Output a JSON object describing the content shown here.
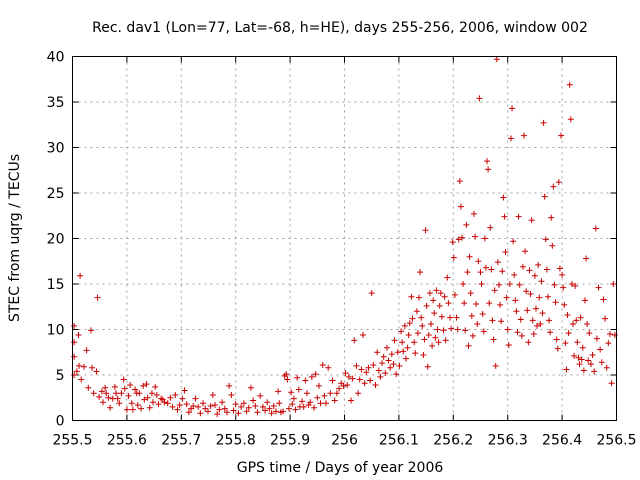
{
  "chart_data": {
    "type": "scatter",
    "title": "Rec. dav1 (Lon=77, Lat=-68, h=HE), days 255-256, 2006, window 002",
    "xlabel": "GPS time / Days of year 2006",
    "ylabel": "STEC from uqrg / TECUs",
    "xlim": [
      255.5,
      256.5
    ],
    "ylim": [
      0,
      40
    ],
    "xticks": [
      255.5,
      255.6,
      255.7,
      255.8,
      255.9,
      256.0,
      256.1,
      256.2,
      256.3,
      256.4,
      256.5
    ],
    "xtick_labels": [
      "255.5",
      "255.6",
      "255.7",
      "255.8",
      "255.9",
      "256",
      "256.1",
      "256.2",
      "256.3",
      "256.4",
      "256.5"
    ],
    "yticks": [
      0,
      5,
      10,
      15,
      20,
      25,
      30,
      35,
      40
    ],
    "ytick_labels": [
      "0",
      "5",
      "10",
      "15",
      "20",
      "25",
      "30",
      "35",
      "40"
    ],
    "grid": true,
    "marker": "+",
    "color": "#c80000",
    "points": [
      [
        255.503,
        10.4
      ],
      [
        255.503,
        8.6
      ],
      [
        255.503,
        7.0
      ],
      [
        255.503,
        5.0
      ],
      [
        255.508,
        5.4
      ],
      [
        255.511,
        9.4
      ],
      [
        255.512,
        6.0
      ],
      [
        255.514,
        15.9
      ],
      [
        255.516,
        4.5
      ],
      [
        255.521,
        5.9
      ],
      [
        255.526,
        7.7
      ],
      [
        255.529,
        3.6
      ],
      [
        255.534,
        9.9
      ],
      [
        255.536,
        5.8
      ],
      [
        255.539,
        3.0
      ],
      [
        255.544,
        5.4
      ],
      [
        255.546,
        13.5
      ],
      [
        255.549,
        2.6
      ],
      [
        255.554,
        3.2
      ],
      [
        255.556,
        2.0
      ],
      [
        255.56,
        3.6
      ],
      [
        255.562,
        3.0
      ],
      [
        255.566,
        2.5
      ],
      [
        255.569,
        1.4
      ],
      [
        255.574,
        2.4
      ],
      [
        255.578,
        3.7
      ],
      [
        255.58,
        3.0
      ],
      [
        255.583,
        2.4
      ],
      [
        255.586,
        1.9
      ],
      [
        255.59,
        3.0
      ],
      [
        255.594,
        4.5
      ],
      [
        255.596,
        3.5
      ],
      [
        255.6,
        1.2
      ],
      [
        255.603,
        2.7
      ],
      [
        255.606,
        3.9
      ],
      [
        255.609,
        1.9
      ],
      [
        255.611,
        1.2
      ],
      [
        255.615,
        3.4
      ],
      [
        255.618,
        3.0
      ],
      [
        255.62,
        1.7
      ],
      [
        255.623,
        3.0
      ],
      [
        255.626,
        1.3
      ],
      [
        255.63,
        3.8
      ],
      [
        255.632,
        2.3
      ],
      [
        255.636,
        4.0
      ],
      [
        255.638,
        2.5
      ],
      [
        255.642,
        1.4
      ],
      [
        255.646,
        3.0
      ],
      [
        255.648,
        2.0
      ],
      [
        255.652,
        3.7
      ],
      [
        255.655,
        2.8
      ],
      [
        255.658,
        1.8
      ],
      [
        255.663,
        2.4
      ],
      [
        255.666,
        2.3
      ],
      [
        255.669,
        2.0
      ],
      [
        255.675,
        1.9
      ],
      [
        255.68,
        2.5
      ],
      [
        255.684,
        1.5
      ],
      [
        255.689,
        2.8
      ],
      [
        255.693,
        1.2
      ],
      [
        255.697,
        1.7
      ],
      [
        255.702,
        2.4
      ],
      [
        255.706,
        3.3
      ],
      [
        255.71,
        1.8
      ],
      [
        255.714,
        0.9
      ],
      [
        255.718,
        1.3
      ],
      [
        255.722,
        1.6
      ],
      [
        255.726,
        2.4
      ],
      [
        255.731,
        1.5
      ],
      [
        255.735,
        0.8
      ],
      [
        255.74,
        1.9
      ],
      [
        255.744,
        1.3
      ],
      [
        255.749,
        1.0
      ],
      [
        255.754,
        1.6
      ],
      [
        255.758,
        2.8
      ],
      [
        255.762,
        1.7
      ],
      [
        255.766,
        0.7
      ],
      [
        255.77,
        1.2
      ],
      [
        255.775,
        2.0
      ],
      [
        255.78,
        1.3
      ],
      [
        255.784,
        0.9
      ],
      [
        255.788,
        3.8
      ],
      [
        255.792,
        2.8
      ],
      [
        255.796,
        1.1
      ],
      [
        255.8,
        1.8
      ],
      [
        255.805,
        0.8
      ],
      [
        255.81,
        1.5
      ],
      [
        255.815,
        1.9
      ],
      [
        255.82,
        1.0
      ],
      [
        255.824,
        1.4
      ],
      [
        255.828,
        3.6
      ],
      [
        255.832,
        2.2
      ],
      [
        255.836,
        1.6
      ],
      [
        255.84,
        0.9
      ],
      [
        255.845,
        2.7
      ],
      [
        255.85,
        1.5
      ],
      [
        255.854,
        1.1
      ],
      [
        255.858,
        2.0
      ],
      [
        255.862,
        1.3
      ],
      [
        255.866,
        0.8
      ],
      [
        255.87,
        1.6
      ],
      [
        255.874,
        1.0
      ],
      [
        255.878,
        3.2
      ],
      [
        255.88,
        1.9
      ],
      [
        255.883,
        0.9
      ],
      [
        255.887,
        1.0
      ],
      [
        255.89,
        4.9
      ],
      [
        255.893,
        5.1
      ],
      [
        255.895,
        4.5
      ],
      [
        255.898,
        1.3
      ],
      [
        255.902,
        3.1
      ],
      [
        255.904,
        1.8
      ],
      [
        255.907,
        2.4
      ],
      [
        255.91,
        1.2
      ],
      [
        255.913,
        4.7
      ],
      [
        255.916,
        3.4
      ],
      [
        255.918,
        1.5
      ],
      [
        255.922,
        2.1
      ],
      [
        255.925,
        1.5
      ],
      [
        255.928,
        4.4
      ],
      [
        255.931,
        3.0
      ],
      [
        255.934,
        1.7
      ],
      [
        255.937,
        2.0
      ],
      [
        255.94,
        4.8
      ],
      [
        255.944,
        1.4
      ],
      [
        255.947,
        5.1
      ],
      [
        255.95,
        2.5
      ],
      [
        255.953,
        3.8
      ],
      [
        255.956,
        1.9
      ],
      [
        255.96,
        6.1
      ],
      [
        255.963,
        2.7
      ],
      [
        255.966,
        1.9
      ],
      [
        255.97,
        5.8
      ],
      [
        255.974,
        3.0
      ],
      [
        255.978,
        4.4
      ],
      [
        255.982,
        2.2
      ],
      [
        255.986,
        3.0
      ],
      [
        255.99,
        3.5
      ],
      [
        255.994,
        4.1
      ],
      [
        255.998,
        3.8
      ],
      [
        256.002,
        5.2
      ],
      [
        256.005,
        3.9
      ],
      [
        256.008,
        4.8
      ],
      [
        256.012,
        2.2
      ],
      [
        256.015,
        4.6
      ],
      [
        256.018,
        8.8
      ],
      [
        256.022,
        6.0
      ],
      [
        256.025,
        3.0
      ],
      [
        256.028,
        4.5
      ],
      [
        256.031,
        5.6
      ],
      [
        256.034,
        9.4
      ],
      [
        256.037,
        4.1
      ],
      [
        256.04,
        5.3
      ],
      [
        256.044,
        5.8
      ],
      [
        256.047,
        4.4
      ],
      [
        256.05,
        14.0
      ],
      [
        256.053,
        6.1
      ],
      [
        256.057,
        3.9
      ],
      [
        256.06,
        7.5
      ],
      [
        256.063,
        5.5
      ],
      [
        256.066,
        4.8
      ],
      [
        256.069,
        6.3
      ],
      [
        256.072,
        7.0
      ],
      [
        256.075,
        5.2
      ],
      [
        256.078,
        8.0
      ],
      [
        256.081,
        6.6
      ],
      [
        256.084,
        5.8
      ],
      [
        256.087,
        7.3
      ],
      [
        256.09,
        6.2
      ],
      [
        256.092,
        8.8
      ],
      [
        256.095,
        5.1
      ],
      [
        256.098,
        7.5
      ],
      [
        256.101,
        6.0
      ],
      [
        256.104,
        9.8
      ],
      [
        256.106,
        8.6
      ],
      [
        256.108,
        7.6
      ],
      [
        256.111,
        10.4
      ],
      [
        256.113,
        6.8
      ],
      [
        256.116,
        8.0
      ],
      [
        256.118,
        9.4
      ],
      [
        256.12,
        10.7
      ],
      [
        256.123,
        13.6
      ],
      [
        256.125,
        11.2
      ],
      [
        256.128,
        8.6
      ],
      [
        256.13,
        7.4
      ],
      [
        256.133,
        12.0
      ],
      [
        256.135,
        9.6
      ],
      [
        256.137,
        13.5
      ],
      [
        256.139,
        16.3
      ],
      [
        256.141,
        11.3
      ],
      [
        256.143,
        10.4
      ],
      [
        256.145,
        7.2
      ],
      [
        256.147,
        8.9
      ],
      [
        256.149,
        20.9
      ],
      [
        256.151,
        12.6
      ],
      [
        256.153,
        5.9
      ],
      [
        256.155,
        9.4
      ],
      [
        256.157,
        14.0
      ],
      [
        256.159,
        10.6
      ],
      [
        256.161,
        8.2
      ],
      [
        256.163,
        13.2
      ],
      [
        256.165,
        11.8
      ],
      [
        256.167,
        9.1
      ],
      [
        256.169,
        14.3
      ],
      [
        256.171,
        10.0
      ],
      [
        256.173,
        8.6
      ],
      [
        256.175,
        12.6
      ],
      [
        256.177,
        14.0
      ],
      [
        256.179,
        11.4
      ],
      [
        256.182,
        9.9
      ],
      [
        256.184,
        13.6
      ],
      [
        256.186,
        8.8
      ],
      [
        256.189,
        15.7
      ],
      [
        256.191,
        12.9
      ],
      [
        256.194,
        11.3
      ],
      [
        256.196,
        10.1
      ],
      [
        256.199,
        19.6
      ],
      [
        256.201,
        17.9
      ],
      [
        256.203,
        13.8
      ],
      [
        256.206,
        11.3
      ],
      [
        256.208,
        10.0
      ],
      [
        256.21,
        19.9
      ],
      [
        256.212,
        26.3
      ],
      [
        256.214,
        23.5
      ],
      [
        256.216,
        20.1
      ],
      [
        256.218,
        15.0
      ],
      [
        256.22,
        12.9
      ],
      [
        256.222,
        9.9
      ],
      [
        256.224,
        21.5
      ],
      [
        256.226,
        16.3
      ],
      [
        256.228,
        8.2
      ],
      [
        256.23,
        18.0
      ],
      [
        256.232,
        14.0
      ],
      [
        256.234,
        11.5
      ],
      [
        256.236,
        9.3
      ],
      [
        256.238,
        22.7
      ],
      [
        256.24,
        20.2
      ],
      [
        256.242,
        12.8
      ],
      [
        256.244,
        10.6
      ],
      [
        256.246,
        17.5
      ],
      [
        256.248,
        35.4
      ],
      [
        256.25,
        16.3
      ],
      [
        256.252,
        15.0
      ],
      [
        256.254,
        11.7
      ],
      [
        256.256,
        9.8
      ],
      [
        256.258,
        20.0
      ],
      [
        256.26,
        16.8
      ],
      [
        256.262,
        28.5
      ],
      [
        256.264,
        27.6
      ],
      [
        256.266,
        12.9
      ],
      [
        256.268,
        21.2
      ],
      [
        256.27,
        16.6
      ],
      [
        256.272,
        11.0
      ],
      [
        256.274,
        8.9
      ],
      [
        256.276,
        14.3
      ],
      [
        256.278,
        6.0
      ],
      [
        256.28,
        39.7
      ],
      [
        256.282,
        17.4
      ],
      [
        256.284,
        14.9
      ],
      [
        256.286,
        12.7
      ],
      [
        256.288,
        10.9
      ],
      [
        256.29,
        16.4
      ],
      [
        256.292,
        24.5
      ],
      [
        256.294,
        22.4
      ],
      [
        256.296,
        18.5
      ],
      [
        256.298,
        13.5
      ],
      [
        256.3,
        10.0
      ],
      [
        256.302,
        8.3
      ],
      [
        256.304,
        15.0
      ],
      [
        256.306,
        31.0
      ],
      [
        256.308,
        34.3
      ],
      [
        256.31,
        19.7
      ],
      [
        256.312,
        16.0
      ],
      [
        256.314,
        13.2
      ],
      [
        256.316,
        12.0
      ],
      [
        256.318,
        9.7
      ],
      [
        256.32,
        22.4
      ],
      [
        256.322,
        14.9
      ],
      [
        256.324,
        11.1
      ],
      [
        256.326,
        9.3
      ],
      [
        256.328,
        16.9
      ],
      [
        256.33,
        31.3
      ],
      [
        256.332,
        18.6
      ],
      [
        256.334,
        14.2
      ],
      [
        256.336,
        12.1
      ],
      [
        256.338,
        8.6
      ],
      [
        256.34,
        16.5
      ],
      [
        256.342,
        13.9
      ],
      [
        256.344,
        22.0
      ],
      [
        256.346,
        11.0
      ],
      [
        256.348,
        9.5
      ],
      [
        256.35,
        15.9
      ],
      [
        256.352,
        12.3
      ],
      [
        256.354,
        10.4
      ],
      [
        256.356,
        17.1
      ],
      [
        256.358,
        13.5
      ],
      [
        256.36,
        10.6
      ],
      [
        256.362,
        15.3
      ],
      [
        256.364,
        11.8
      ],
      [
        256.366,
        32.7
      ],
      [
        256.368,
        24.6
      ],
      [
        256.37,
        19.9
      ],
      [
        256.372,
        16.6
      ],
      [
        256.374,
        13.6
      ],
      [
        256.376,
        11.0
      ],
      [
        256.378,
        9.7
      ],
      [
        256.38,
        22.3
      ],
      [
        256.382,
        19.2
      ],
      [
        256.384,
        25.7
      ],
      [
        256.386,
        14.9
      ],
      [
        256.388,
        13.0
      ],
      [
        256.39,
        8.9
      ],
      [
        256.392,
        7.9
      ],
      [
        256.394,
        26.2
      ],
      [
        256.396,
        16.7
      ],
      [
        256.398,
        31.3
      ],
      [
        256.4,
        16.0
      ],
      [
        256.402,
        14.6
      ],
      [
        256.404,
        12.7
      ],
      [
        256.406,
        8.5
      ],
      [
        256.408,
        5.6
      ],
      [
        256.41,
        11.6
      ],
      [
        256.412,
        9.6
      ],
      [
        256.414,
        36.9
      ],
      [
        256.416,
        33.1
      ],
      [
        256.418,
        15.0
      ],
      [
        256.42,
        10.6
      ],
      [
        256.422,
        7.1
      ],
      [
        256.424,
        14.8
      ],
      [
        256.426,
        11.0
      ],
      [
        256.428,
        8.6
      ],
      [
        256.43,
        6.9
      ],
      [
        256.432,
        6.2
      ],
      [
        256.434,
        11.3
      ],
      [
        256.436,
        6.7
      ],
      [
        256.438,
        8.0
      ],
      [
        256.44,
        5.5
      ],
      [
        256.442,
        13.2
      ],
      [
        256.444,
        17.8
      ],
      [
        256.446,
        10.6
      ],
      [
        256.448,
        6.6
      ],
      [
        256.45,
        9.6
      ],
      [
        256.453,
        6.2
      ],
      [
        256.456,
        7.2
      ],
      [
        256.459,
        5.4
      ],
      [
        256.462,
        21.1
      ],
      [
        256.464,
        9.0
      ],
      [
        256.467,
        14.6
      ],
      [
        256.47,
        7.8
      ],
      [
        256.473,
        6.4
      ],
      [
        256.476,
        13.3
      ],
      [
        256.479,
        11.2
      ],
      [
        256.482,
        5.8
      ],
      [
        256.485,
        8.5
      ],
      [
        256.488,
        9.5
      ],
      [
        256.491,
        4.1
      ],
      [
        256.494,
        15.0
      ],
      [
        256.497,
        9.4
      ]
    ]
  }
}
